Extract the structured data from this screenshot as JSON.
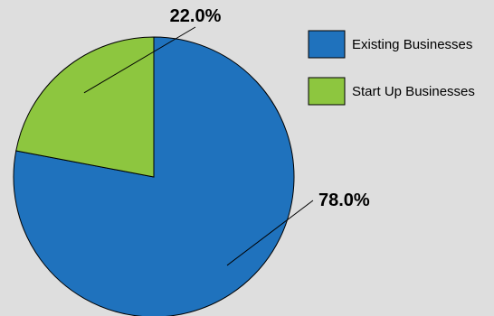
{
  "chart_data": {
    "type": "pie",
    "slices": [
      {
        "name": "Existing Businesses",
        "value": 78.0,
        "label": "78.0%",
        "color": "#1f72bd"
      },
      {
        "name": "Start Up Businesses",
        "value": 22.0,
        "label": "22.0%",
        "color": "#8dc63f"
      }
    ],
    "legend_placement": "top-right",
    "start_angle": "12 o'clock",
    "direction": "clockwise"
  },
  "background_color": "#dedede"
}
